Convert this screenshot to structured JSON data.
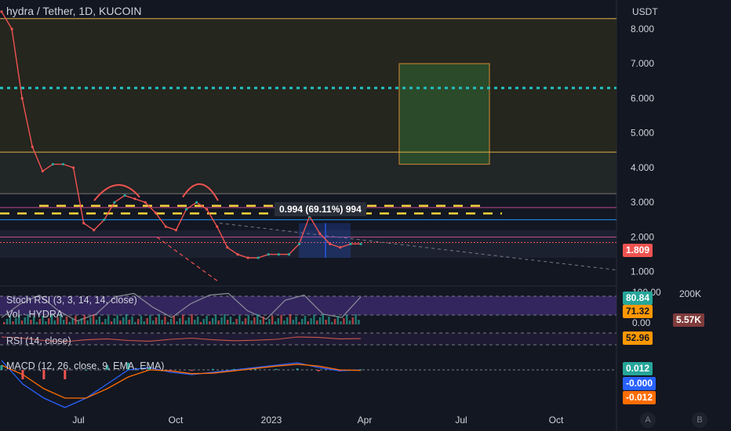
{
  "header": {
    "title": "hydra / Tether, 1D, KUCOIN"
  },
  "currency": "USDT",
  "indicators": {
    "stoch": "Stoch RSI (3, 3, 14, 14, close)",
    "vol": "Vol · HYDRA",
    "rsi": "RSI (14, close)",
    "macd": "MACD (12, 26, close, 9, EMA, EMA)"
  },
  "measure_label": "0.994 (69.11%) 994",
  "tags": {
    "price": "1.809",
    "stoch_k": "80.84",
    "stoch_d": "71.32",
    "vol": "5.57K",
    "rsi": "52.96",
    "macd_hist": "0.012",
    "macd_line": "-0.000",
    "macd_signal": "-0.012"
  },
  "axis_extra": {
    "rsi_top": "100.00",
    "vol_top": "200K",
    "zero": "0.00"
  },
  "buttons": {
    "a": "A",
    "b": "B"
  },
  "colors": {
    "bg": "#131722",
    "up": "#26a69a",
    "down": "#ef5350",
    "rsi": "#7e57c2",
    "accent": "#2962ff"
  },
  "chart_data": [
    {
      "type": "line",
      "title": "hydra / Tether, 1D, KUCOIN",
      "x_ticks": [
        "Jul",
        "Oct",
        "2023",
        "Apr",
        "Jul",
        "Oct"
      ],
      "y_ticks": [
        1.0,
        2.0,
        3.0,
        4.0,
        5.0,
        6.0,
        7.0,
        8.0
      ],
      "ylim": [
        0.7,
        8.7
      ],
      "series": [
        {
          "values": [
            8.5,
            8.0,
            6.0,
            4.6,
            3.9,
            4.1,
            4.1,
            4.0,
            2.4,
            2.2,
            2.5,
            3.0,
            3.2,
            3.1,
            3.0,
            2.7,
            2.3,
            2.2,
            2.8,
            3.0,
            2.8,
            2.3,
            1.7,
            1.5,
            1.4,
            1.4,
            1.5,
            1.5,
            1.5,
            1.8,
            2.6,
            2.1,
            1.8,
            1.7,
            1.8,
            1.8
          ]
        }
      ],
      "levels": [
        8.3,
        6.3,
        4.45,
        3.25,
        2.9,
        2.85,
        2.68,
        2.5,
        1.84,
        1.809
      ],
      "last_price": 1.809
    },
    {
      "type": "line",
      "title": "Stoch RSI (3, 3, 14, 14, close)",
      "ylim": [
        0,
        100
      ],
      "series": [
        {
          "values": [
            20,
            60,
            85,
            40,
            10,
            30,
            80,
            90,
            50,
            20,
            60,
            85,
            90,
            40,
            15,
            70,
            85,
            30,
            20,
            80
          ]
        }
      ],
      "last_k": 80.84,
      "last_d": 71.32
    },
    {
      "type": "line",
      "title": "RSI (14, close)",
      "ylim": [
        0,
        100
      ],
      "series": [
        {
          "values": [
            60,
            55,
            45,
            40,
            48,
            52,
            45,
            42,
            50,
            55,
            48,
            44,
            46,
            50,
            60,
            58,
            52,
            53
          ]
        }
      ],
      "last": 52.96
    },
    {
      "type": "line",
      "title": "MACD (12, 26, close, 9, EMA, EMA)",
      "series": [
        {
          "values": [
            0.2,
            -0.3,
            -0.6,
            -0.8,
            -0.6,
            -0.3,
            0.0,
            0.05,
            -0.05,
            -0.1,
            -0.05,
            0.0,
            0.05,
            0.1,
            0.15,
            0.05,
            -0.02,
            0.0
          ]
        },
        {
          "values": [
            0.1,
            -0.1,
            -0.4,
            -0.6,
            -0.6,
            -0.4,
            -0.15,
            0.0,
            -0.02,
            -0.08,
            -0.07,
            -0.02,
            0.03,
            0.08,
            0.12,
            0.08,
            0.0,
            -0.012
          ]
        }
      ],
      "last_hist": 0.012,
      "last_macd": -0.0,
      "last_signal": -0.012
    }
  ]
}
